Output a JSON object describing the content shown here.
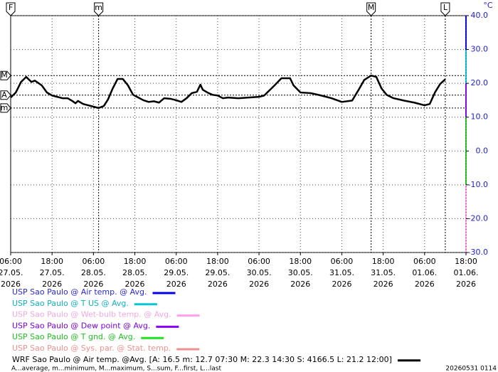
{
  "chart_data": {
    "type": "line",
    "y_unit": "°C",
    "xlim": [
      0,
      132
    ],
    "xticks": [
      {
        "value": 0,
        "label": "06:00\n27.05.\n2026"
      },
      {
        "value": 12,
        "label": "18:00\n27.05.\n2026"
      },
      {
        "value": 24,
        "label": "06:00\n28.05.\n2026"
      },
      {
        "value": 36,
        "label": "18:00\n28.05.\n2026"
      },
      {
        "value": 48,
        "label": "06:00\n29.05.\n2026"
      },
      {
        "value": 60,
        "label": "18:00\n29.05.\n2026"
      },
      {
        "value": 72,
        "label": "06:00\n30.05.\n2026"
      },
      {
        "value": 84,
        "label": "18:00\n30.05.\n2026"
      },
      {
        "value": 96,
        "label": "06:00\n31.05.\n2026"
      },
      {
        "value": 108,
        "label": "18:00\n31.05.\n2026"
      },
      {
        "value": 120,
        "label": "06:00\n01.06.\n2026"
      },
      {
        "value": 132,
        "label": "18:00\n01.06.\n2026"
      }
    ],
    "ylim": [
      -30,
      40
    ],
    "yticks": [
      {
        "value": 40,
        "label": "40.0"
      },
      {
        "value": 30,
        "label": "30.0"
      },
      {
        "value": 20,
        "label": "20.0"
      },
      {
        "value": 10,
        "label": "10.0"
      },
      {
        "value": 0,
        "label": "0.0"
      },
      {
        "value": -10,
        "label": "-10.0"
      },
      {
        "value": -20,
        "label": "-20.0"
      },
      {
        "value": -30,
        "label": "-30.0"
      }
    ],
    "grid": true,
    "markers_x": [
      {
        "label": "F",
        "x": 0
      },
      {
        "label": "m",
        "x": 25.5
      },
      {
        "label": "M",
        "x": 104.5
      },
      {
        "label": "L",
        "x": 126
      }
    ],
    "markers_y": [
      {
        "label": "M",
        "value": 22.3
      },
      {
        "label": "A",
        "value": 16.5
      },
      {
        "label": "m",
        "value": 12.7
      }
    ],
    "series": [
      {
        "name": "USP Sao Paulo @ Air temp. @ Avg.",
        "color": "#0000e0",
        "text_color": "#2a2ad0"
      },
      {
        "name": "USP Sao Paulo @ T US @ Avg.",
        "color": "#00c8d8",
        "text_color": "#10b0c0"
      },
      {
        "name": "USP Sao Paulo @ Wet-bulb temp. @ Avg.",
        "color": "#ffa0f0",
        "text_color": "#f0a8e0"
      },
      {
        "name": "USP Sao Paulo @ Dew point @ Avg.",
        "color": "#8800ff",
        "text_color": "#7a00d8"
      },
      {
        "name": "USP Sao Paulo @ T gnd. @ Avg.",
        "color": "#20e020",
        "text_color": "#20c020"
      },
      {
        "name": "USP Sao Paulo @ Sys. par. @ Stat. temp.",
        "color": "#f09090",
        "text_color": "#f09090"
      },
      {
        "name": "WRF Sao Paulo @ Air temp. @Avg. [A: 16.5 m: 12.7 07:30 M: 22.3 14:30 S: 4166.5 L: 21.2 12:00]",
        "color": "#000000",
        "text_color": "#000000",
        "x": [
          0,
          1.5,
          3,
          4.5,
          6,
          7,
          9,
          10.5,
          12,
          15,
          16.5,
          18,
          18.8,
          19.5,
          21,
          22.5,
          24,
          25.5,
          27,
          28.2,
          29.5,
          31,
          32.5,
          34,
          35.5,
          37,
          38.5,
          40,
          41.5,
          43,
          44.5,
          46.5,
          48,
          49.5,
          51,
          52.5,
          54,
          55,
          55.7,
          57,
          58.5,
          60,
          61.5,
          63,
          66,
          69,
          72,
          73.5,
          75,
          76.5,
          78.5,
          81,
          82,
          84,
          87,
          90,
          93,
          96,
          99,
          101,
          102.5,
          104.5,
          106,
          107.5,
          109,
          111,
          114,
          117,
          120,
          121.5,
          123,
          124.5,
          126
        ],
        "values": [
          15.8,
          17.3,
          20.4,
          21.9,
          20.4,
          20.8,
          19.4,
          17.3,
          16.4,
          15.6,
          15.6,
          14.7,
          14.1,
          14.8,
          13.9,
          13.5,
          13.1,
          12.7,
          13.3,
          15.2,
          18.3,
          21.3,
          21.3,
          19.4,
          16.6,
          15.8,
          15.0,
          14.5,
          14.7,
          14.3,
          15.6,
          15.4,
          15.0,
          14.5,
          15.6,
          17.1,
          17.5,
          19.6,
          18.1,
          17.3,
          16.6,
          16.4,
          15.6,
          15.8,
          15.6,
          15.8,
          16.0,
          16.4,
          17.9,
          19.4,
          21.5,
          21.5,
          19.4,
          17.3,
          17.1,
          16.4,
          15.6,
          14.5,
          14.9,
          18.3,
          21.0,
          22.3,
          21.9,
          18.5,
          16.6,
          15.6,
          14.9,
          14.3,
          13.5,
          13.9,
          17.3,
          19.8,
          21.2
        ]
      }
    ],
    "footnote": "A...average, m...minimum, M...maximum, S...sum, F...first, L...last",
    "timestamp": "20260531 0114"
  }
}
